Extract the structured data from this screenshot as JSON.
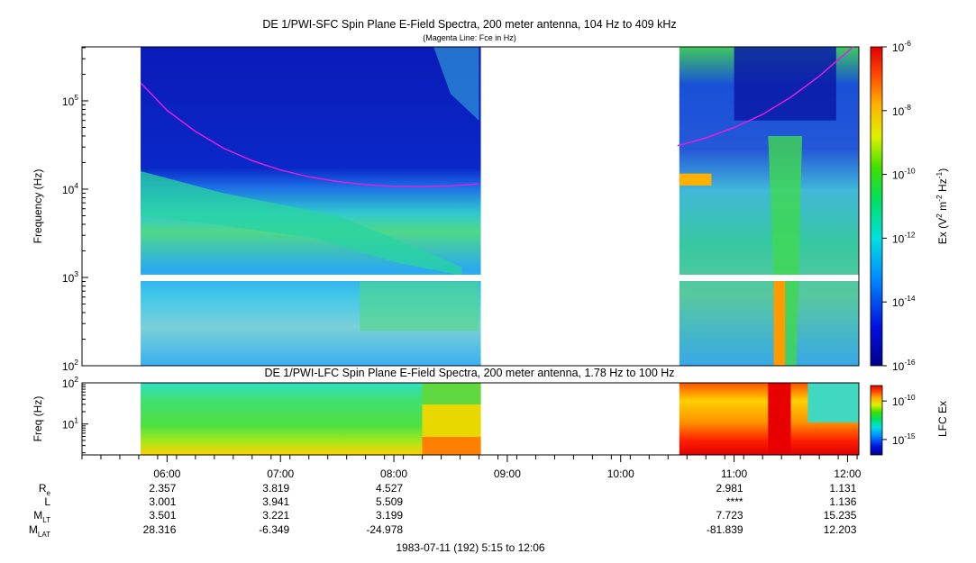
{
  "chart_data": [
    {
      "type": "heatmap",
      "title": "DE 1/PWI-SFC  Spin Plane E-Field Spectra, 200 meter antenna, 104 Hz to 409 kHz",
      "subtitle": "(Magenta Line: Fce in Hz)",
      "ylabel": "Frequency (Hz)",
      "yscale": "log",
      "ylim": [
        100,
        409000
      ],
      "yticks": [
        {
          "value": 100,
          "base": "10",
          "exp": "2"
        },
        {
          "value": 1000,
          "base": "10",
          "exp": "3"
        },
        {
          "value": 10000,
          "base": "10",
          "exp": "4"
        },
        {
          "value": 100000,
          "base": "10",
          "exp": "5"
        }
      ],
      "xlim_hours": [
        5.25,
        12.1
      ],
      "data_intervals_hours": [
        [
          5.767,
          8.767
        ],
        [
          10.517,
          12.1
        ]
      ],
      "colorbar": {
        "label": "Ex (V",
        "label_sup1": "2",
        "label_mid": " m",
        "label_sup2": "-2",
        "label_mid2": " Hz",
        "label_sup3": "-1",
        "label_end": ")",
        "scale": "log",
        "range": [
          1e-16,
          1e-06
        ],
        "ticks": [
          {
            "value": 1e-06,
            "base": "10",
            "exp": "-6"
          },
          {
            "value": 1e-08,
            "base": "10",
            "exp": "-8"
          },
          {
            "value": 1e-10,
            "base": "10",
            "exp": "-10"
          },
          {
            "value": 1e-12,
            "base": "10",
            "exp": "-12"
          },
          {
            "value": 1e-14,
            "base": "10",
            "exp": "-14"
          },
          {
            "value": 1e-16,
            "base": "10",
            "exp": "-16"
          }
        ]
      },
      "fce_line": {
        "color": "#e020e0",
        "points_hours_hz": [
          [
            5.767,
            160000
          ],
          [
            6.0,
            78000
          ],
          [
            6.25,
            45000
          ],
          [
            6.5,
            29000
          ],
          [
            6.75,
            21000
          ],
          [
            7.0,
            16500
          ],
          [
            7.25,
            13800
          ],
          [
            7.5,
            12200
          ],
          [
            7.75,
            11200
          ],
          [
            8.0,
            10800
          ],
          [
            8.25,
            10700
          ],
          [
            8.5,
            10900
          ],
          [
            8.75,
            11500
          ]
        ],
        "points_hours_hz_2": [
          [
            10.5,
            31000
          ],
          [
            10.75,
            38000
          ],
          [
            11.0,
            50000
          ],
          [
            11.25,
            70000
          ],
          [
            11.5,
            110000
          ],
          [
            11.75,
            190000
          ],
          [
            12.05,
            420000
          ]
        ]
      },
      "colors": {
        "low": "#00008b",
        "mid_blue": "#0033cc",
        "cyan": "#20d0e0",
        "green": "#30e040",
        "yellow": "#ffff00",
        "orange": "#ff8800",
        "red": "#ee0000"
      }
    },
    {
      "type": "heatmap",
      "title": "DE 1/PWI-LFC  Spin Plane E-Field Spectra, 200 meter antenna, 1.78 Hz to 100 Hz",
      "ylabel": "Freq (Hz)",
      "yscale": "log",
      "ylim": [
        1.78,
        100
      ],
      "yticks": [
        {
          "value": 10,
          "base": "10",
          "exp": "1"
        },
        {
          "value": 100,
          "base": "10",
          "exp": "2"
        }
      ],
      "colorbar": {
        "label": "LFC Ex",
        "scale": "log",
        "range": [
          1e-17,
          1e-08
        ],
        "ticks": [
          {
            "value": 1e-10,
            "base": "10",
            "exp": "-10"
          },
          {
            "value": 1e-15,
            "base": "10",
            "exp": "-15"
          }
        ]
      }
    }
  ],
  "time_axis": {
    "tick_labels": [
      "06:00",
      "07:00",
      "08:00",
      "09:00",
      "10:00",
      "11:00",
      "12:00"
    ],
    "tick_hours": [
      6,
      7,
      8,
      9,
      10,
      11,
      12
    ],
    "minor_tick_interval_hours": 0.1667
  },
  "ephemeris": {
    "rows": [
      {
        "label": "R",
        "sub": "e",
        "values": [
          "2.357",
          "3.819",
          "4.527",
          "",
          "",
          "2.981",
          "1.131"
        ]
      },
      {
        "label": "L",
        "sub": "",
        "values": [
          "3.001",
          "3.941",
          "5.509",
          "",
          "",
          "****",
          "1.136"
        ]
      },
      {
        "label": "M",
        "sub": "LT",
        "values": [
          "3.501",
          "3.221",
          "3.199",
          "",
          "",
          "7.723",
          "15.235"
        ]
      },
      {
        "label": "M",
        "sub": "LAT",
        "values": [
          "28.316",
          "-6.349",
          "-24.978",
          "",
          "",
          "-81.839",
          "12.203"
        ]
      }
    ]
  },
  "footer": "1983-07-11 (192) 5:15 to 12:06"
}
